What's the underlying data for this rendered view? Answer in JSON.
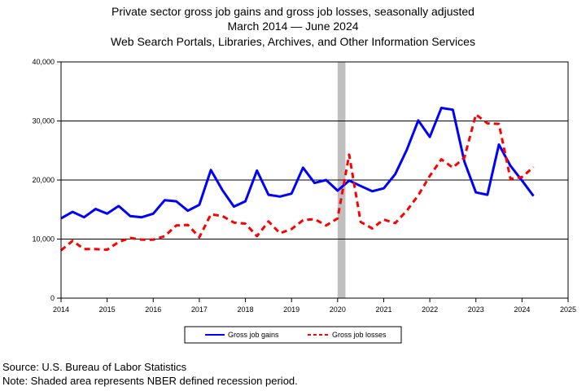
{
  "chart_data": {
    "type": "line",
    "title": [
      "Private sector gross job gains and gross job losses, seasonally adjusted",
      "March 2014  — June 2024",
      "Web Search Portals, Libraries, Archives, and Other Information Services"
    ],
    "xlabel": "",
    "ylabel": "",
    "xlim": [
      2014,
      2025
    ],
    "ylim": [
      0,
      40000
    ],
    "x_ticks": [
      "2014",
      "2015",
      "2016",
      "2017",
      "2018",
      "2019",
      "2020",
      "2021",
      "2022",
      "2023",
      "2024",
      "2025"
    ],
    "y_ticks": [
      "0",
      "10,000",
      "20,000",
      "30,000",
      "40,000"
    ],
    "grid": "horizontal",
    "recession": {
      "start": 2020.0,
      "end": 2020.17,
      "color": "#bfbfbf"
    },
    "x": [
      2014.0,
      2014.25,
      2014.5,
      2014.75,
      2015.0,
      2015.25,
      2015.5,
      2015.75,
      2016.0,
      2016.25,
      2016.5,
      2016.75,
      2017.0,
      2017.25,
      2017.5,
      2017.75,
      2018.0,
      2018.25,
      2018.5,
      2018.75,
      2019.0,
      2019.25,
      2019.5,
      2019.75,
      2020.0,
      2020.25,
      2020.5,
      2020.75,
      2021.0,
      2021.25,
      2021.5,
      2021.75,
      2022.0,
      2022.25,
      2022.5,
      2022.75,
      2023.0,
      2023.25,
      2023.5,
      2023.75,
      2024.0,
      2024.25
    ],
    "series": [
      {
        "name": "Gross job gains",
        "color": "#0000ff",
        "dash": "solid",
        "values": [
          13500,
          14600,
          13700,
          15100,
          14300,
          15600,
          13900,
          13700,
          14300,
          16600,
          16400,
          14800,
          15800,
          21700,
          18300,
          15500,
          16400,
          21600,
          17500,
          17200,
          17700,
          22100,
          19500,
          20000,
          18200,
          19900,
          19000,
          18100,
          18600,
          21000,
          25100,
          30100,
          27300,
          32200,
          31900,
          23100,
          17900,
          17500,
          26000,
          22400,
          19900,
          17300
        ]
      },
      {
        "name": "Gross job losses",
        "color": "#ff0000",
        "dash": "dashed",
        "values": [
          8100,
          9700,
          8300,
          8300,
          8200,
          9500,
          10200,
          9900,
          9900,
          10500,
          12300,
          12400,
          10300,
          14200,
          13900,
          12800,
          12600,
          10500,
          13000,
          11000,
          11700,
          13200,
          13400,
          12300,
          13500,
          24300,
          12900,
          11800,
          13300,
          12700,
          14800,
          17400,
          20700,
          23500,
          22100,
          23800,
          31100,
          29600,
          29500,
          20200,
          20500,
          22200
        ]
      }
    ]
  },
  "source_note": "Source: U.S. Bureau of Labor Statistics",
  "recession_note": "Note: Shaded area represents NBER defined recession period."
}
